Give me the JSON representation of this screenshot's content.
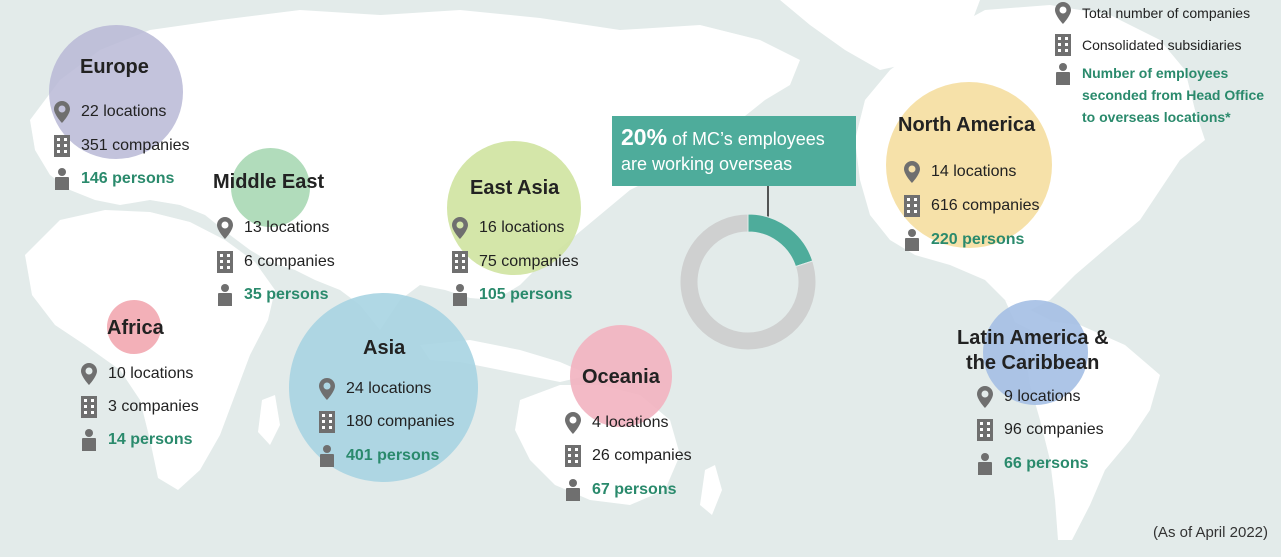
{
  "legend": {
    "total": "Total number of companies",
    "consolidated": "Consolidated subsidiaries",
    "seconded": "Number of employees seconded from Head Office to overseas locations*"
  },
  "callout": {
    "percent": "20%",
    "line1_rest": " of MC’s employees",
    "line2": "are working overseas"
  },
  "chart_data": {
    "type": "pie",
    "variant": "donut",
    "slices": [
      {
        "label": "20% of MC’s employees are working overseas",
        "value": 20,
        "color": "#4eac9b"
      },
      {
        "value": 80,
        "color": "#cfd0d0"
      }
    ]
  },
  "regions": [
    {
      "id": "europe",
      "name": "Europe",
      "locations": "22 locations",
      "companies": "351 companies",
      "persons": "146 persons",
      "color": "#b9b8d6"
    },
    {
      "id": "middle-east",
      "name": "Middle East",
      "locations": "13 locations",
      "companies": "6 companies",
      "persons": "35 persons",
      "color": "#a8d8b4"
    },
    {
      "id": "africa",
      "name": "Africa",
      "locations": "10 locations",
      "companies": "3 companies",
      "persons": "14 persons",
      "color": "#f2a7b0"
    },
    {
      "id": "asia",
      "name": "Asia",
      "locations": "24 locations",
      "companies": "180 companies",
      "persons": "401 persons",
      "color": "#a7d4e2"
    },
    {
      "id": "east-asia",
      "name": "East Asia",
      "locations": "16 locations",
      "companies": "75 companies",
      "persons": "105 persons",
      "color": "#cfe3a0"
    },
    {
      "id": "oceania",
      "name": "Oceania",
      "locations": "4 locations",
      "companies": "26 companies",
      "persons": "67 persons",
      "color": "#f2b3c0"
    },
    {
      "id": "north-america",
      "name": "North America",
      "locations": "14 locations",
      "companies": "616 companies",
      "persons": "220 persons",
      "color": "#f5dea0"
    },
    {
      "id": "latin-america",
      "name_line1": "Latin America &",
      "name_line2": "the Caribbean",
      "locations": "9 locations",
      "companies": "96 companies",
      "persons": "66 persons",
      "color": "#a4bfe4"
    }
  ],
  "footnote": "(As of April 2022)"
}
